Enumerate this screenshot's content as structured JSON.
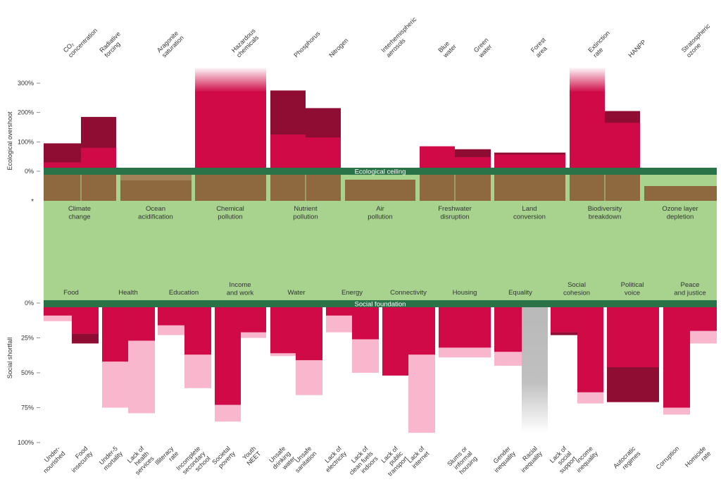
{
  "colors": {
    "band_green": "#a7d38f",
    "ceiling_green": "#2a7348",
    "brown": "#8e6940",
    "brown_light": "#a48259",
    "red": "#cf0a47",
    "dark_red": "#8f0c33",
    "pink": "#f8b7cc",
    "grey": "#b9b9b9",
    "text": "#333333"
  },
  "labels": {
    "ceiling": "Ecological ceiling",
    "foundation": "Social foundation",
    "ecological_axis": "Ecological overshoot",
    "social_axis": "Social shortfall",
    "marker": "*"
  },
  "chart_data": {
    "type": "bar",
    "ecological": {
      "ylabel": "Ecological overshoot",
      "ylim": [
        0,
        300
      ],
      "ticks": [
        {
          "v": 0,
          "label": "0%"
        },
        {
          "v": 100,
          "label": "100%"
        },
        {
          "v": 200,
          "label": "200%"
        },
        {
          "v": 300,
          "label": "300%"
        }
      ],
      "domains": [
        {
          "name": "Climate change",
          "lines": [
            "Climate",
            "change"
          ],
          "indicators": [
            {
              "lines": [
                "CO₂",
                "concentration"
              ],
              "current": 30,
              "past": 95
            },
            {
              "lines": [
                "Radiative",
                "forcing"
              ],
              "current": 80,
              "past": 185
            }
          ]
        },
        {
          "name": "Ocean acidification",
          "lines": [
            "Ocean",
            "acidification"
          ],
          "indicators": [
            {
              "lines": [
                "Aragonite",
                "saturation"
              ],
              "current": 0,
              "past": 0,
              "within": 80,
              "within_past": 90
            }
          ]
        },
        {
          "name": "Chemical pollution",
          "lines": [
            "Chemical",
            "pollution"
          ],
          "indicators": [
            {
              "lines": [
                "Hazardous",
                "chemicals"
              ],
              "current": 300,
              "past": 0,
              "beyond_scale": true
            }
          ]
        },
        {
          "name": "Nutrient pollution",
          "lines": [
            "Nutrient",
            "pollution"
          ],
          "indicators": [
            {
              "lines": [
                "Phosphorus"
              ],
              "current": 125,
              "past": 275
            },
            {
              "lines": [
                "Nitrogen"
              ],
              "current": 115,
              "past": 215
            }
          ]
        },
        {
          "name": "Air pollution",
          "lines": [
            "Air",
            "pollution"
          ],
          "indicators": [
            {
              "lines": [
                "Interhemispheric",
                "aerosols"
              ],
              "current": 0,
              "past": 0,
              "within": 80
            }
          ]
        },
        {
          "name": "Freshwater disruption",
          "lines": [
            "Freshwater",
            "disruption"
          ],
          "indicators": [
            {
              "lines": [
                "Blue",
                "water"
              ],
              "current": 85,
              "past": 85
            },
            {
              "lines": [
                "Green",
                "water"
              ],
              "current": 48,
              "past": 75
            }
          ]
        },
        {
          "name": "Land conversion",
          "lines": [
            "Land",
            "conversion"
          ],
          "indicators": [
            {
              "lines": [
                "Forest",
                "area"
              ],
              "current": 60,
              "past": 63
            }
          ]
        },
        {
          "name": "Biodiversity breakdown",
          "lines": [
            "Biodiversity",
            "breakdown"
          ],
          "indicators": [
            {
              "lines": [
                "Extinction",
                "rate"
              ],
              "current": 300,
              "past": 0,
              "beyond_scale": true
            },
            {
              "lines": [
                "HANPP"
              ],
              "current": 165,
              "past": 205
            }
          ]
        },
        {
          "name": "Ozone layer depletion",
          "lines": [
            "Ozone layer",
            "depletion"
          ],
          "indicators": [
            {
              "lines": [
                "Stratospheric",
                "ozone"
              ],
              "current": 0,
              "past": 0,
              "within": 50
            }
          ]
        }
      ]
    },
    "social": {
      "ylabel": "Social shortfall",
      "ylim": [
        0,
        100
      ],
      "ticks": [
        {
          "v": 0,
          "label": "0%"
        },
        {
          "v": 25,
          "label": "25%"
        },
        {
          "v": 50,
          "label": "50%"
        },
        {
          "v": 75,
          "label": "75%"
        },
        {
          "v": 100,
          "label": "100%"
        }
      ],
      "domains": [
        {
          "name": "Food",
          "lines": [
            "Food"
          ],
          "indicators": [
            {
              "lines": [
                "Under-",
                "nourished"
              ],
              "current": 9,
              "past": 13
            },
            {
              "lines": [
                "Food",
                "insecurity"
              ],
              "current": 22,
              "past": 29,
              "past_above": true
            }
          ]
        },
        {
          "name": "Health",
          "lines": [
            "Health"
          ],
          "indicators": [
            {
              "lines": [
                "Under-5",
                "mortality"
              ],
              "current": 42,
              "past": 75
            },
            {
              "lines": [
                "Lack of",
                "health",
                "services"
              ],
              "current": 27,
              "past": 79
            }
          ]
        },
        {
          "name": "Education",
          "lines": [
            "Education"
          ],
          "indicators": [
            {
              "lines": [
                "Illiteracy",
                "rate"
              ],
              "current": 16,
              "past": 23
            },
            {
              "lines": [
                "Incomplete",
                "secondary",
                "school"
              ],
              "current": 37,
              "past": 61
            }
          ]
        },
        {
          "name": "Income and work",
          "lines": [
            "Income",
            "and work"
          ],
          "indicators": [
            {
              "lines": [
                "Societal",
                "poverty"
              ],
              "current": 73,
              "past": 85
            },
            {
              "lines": [
                "Youth",
                "NEET"
              ],
              "current": 21,
              "past": 25
            }
          ]
        },
        {
          "name": "Water",
          "lines": [
            "Water"
          ],
          "indicators": [
            {
              "lines": [
                "Unsafe",
                "drinking",
                "water"
              ],
              "current": 36,
              "past": 38
            },
            {
              "lines": [
                "Unsafe",
                "sanitation"
              ],
              "current": 41,
              "past": 66
            }
          ]
        },
        {
          "name": "Energy",
          "lines": [
            "Energy"
          ],
          "indicators": [
            {
              "lines": [
                "Lack of",
                "electricity"
              ],
              "current": 9,
              "past": 21
            },
            {
              "lines": [
                "Lack of",
                "clean fuels",
                "indoors"
              ],
              "current": 26,
              "past": 50
            }
          ]
        },
        {
          "name": "Connectivity",
          "lines": [
            "Connectivity"
          ],
          "indicators": [
            {
              "lines": [
                "Lack of",
                "public",
                "transport"
              ],
              "current": 52,
              "past": 52
            },
            {
              "lines": [
                "Lack of",
                "internet"
              ],
              "current": 37,
              "past": 93
            }
          ]
        },
        {
          "name": "Housing",
          "lines": [
            "Housing"
          ],
          "indicators": [
            {
              "lines": [
                "Slums or",
                "informal",
                "housing"
              ],
              "current": 32,
              "past": 39
            }
          ]
        },
        {
          "name": "Equality",
          "lines": [
            "Equality"
          ],
          "indicators": [
            {
              "lines": [
                "Gender",
                "inequality"
              ],
              "current": 35,
              "past": 45
            },
            {
              "lines": [
                "Racial",
                "inequality"
              ],
              "current": 0,
              "past": 0,
              "no_data": true,
              "extent": 93
            }
          ]
        },
        {
          "name": "Social cohesion",
          "lines": [
            "Social",
            "cohesion"
          ],
          "indicators": [
            {
              "lines": [
                "Lack of",
                "social",
                "support"
              ],
              "current": 21,
              "past": 23,
              "past_above": true
            },
            {
              "lines": [
                "Income",
                "inequality"
              ],
              "current": 64,
              "past": 72
            }
          ]
        },
        {
          "name": "Political voice",
          "lines": [
            "Political",
            "voice"
          ],
          "indicators": [
            {
              "lines": [
                "Autocratic",
                "regimes"
              ],
              "current": 71,
              "past": 46,
              "past_above": true
            }
          ]
        },
        {
          "name": "Peace and justice",
          "lines": [
            "Peace",
            "and justice"
          ],
          "indicators": [
            {
              "lines": [
                "Corruption"
              ],
              "current": 75,
              "past": 80
            },
            {
              "lines": [
                "Homicide",
                "rate"
              ],
              "current": 20,
              "past": 29
            }
          ]
        }
      ]
    }
  }
}
